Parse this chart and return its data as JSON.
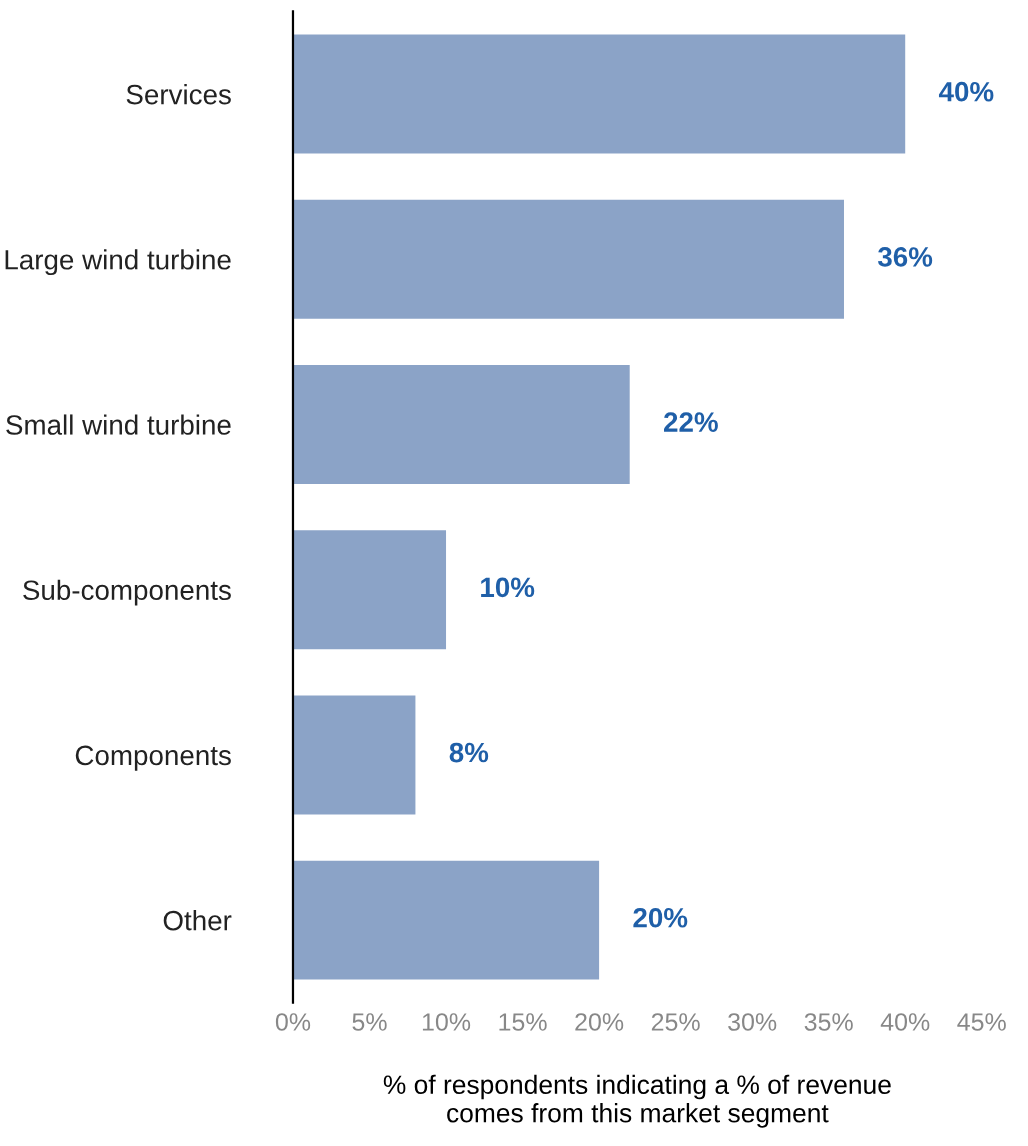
{
  "chart_data": {
    "type": "bar",
    "orientation": "horizontal",
    "categories": [
      "Services",
      "Large wind turbine",
      "Small wind turbine",
      "Sub-components",
      "Components",
      "Other"
    ],
    "values": [
      40,
      36,
      22,
      10,
      8,
      20
    ],
    "value_labels": [
      "40%",
      "36%",
      "22%",
      "10%",
      "8%",
      "20%"
    ],
    "color": "#8ba3c7",
    "xlabel": "% of respondents indicating a % of revenue\ncomes from this market segment",
    "xlim": [
      0,
      45
    ],
    "xticks": [
      {
        "value": 0,
        "label": "0%"
      },
      {
        "value": 5,
        "label": "5%"
      },
      {
        "value": 10,
        "label": "10%"
      },
      {
        "value": 15,
        "label": "15%"
      },
      {
        "value": 20,
        "label": "20%"
      },
      {
        "value": 25,
        "label": "25%"
      },
      {
        "value": 30,
        "label": "30%"
      },
      {
        "value": 35,
        "label": "35%"
      },
      {
        "value": 40,
        "label": "40%"
      },
      {
        "value": 45,
        "label": "45%"
      }
    ],
    "grid": false,
    "legend": false
  }
}
